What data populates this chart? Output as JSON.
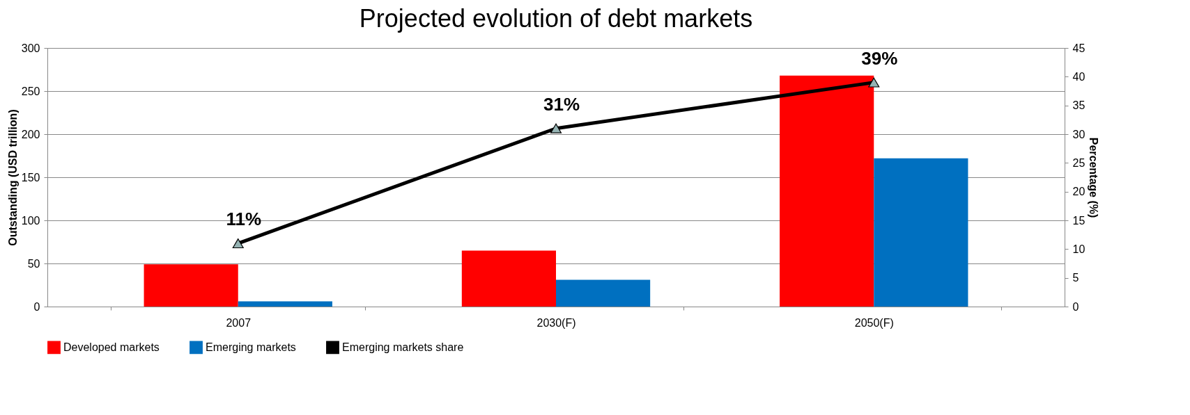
{
  "chart_data": {
    "type": "bar",
    "title": "Projected evolution of debt markets",
    "categories": [
      "2007",
      "2030(F)",
      "2050(F)"
    ],
    "ylabel": "Outstanding (USD trillion)",
    "y2label": "Percentage (%)",
    "ylim": [
      0,
      300
    ],
    "yticks": [
      0,
      50,
      100,
      150,
      200,
      250,
      300
    ],
    "y2lim": [
      0,
      45
    ],
    "y2ticks": [
      0,
      5,
      10,
      15,
      20,
      25,
      30,
      35,
      40,
      45
    ],
    "grid": "y",
    "legend": "bottom",
    "series": [
      {
        "name": "Developed markets",
        "color": "#ff0000",
        "values": [
          49,
          65,
          268
        ]
      },
      {
        "name": "Emerging markets",
        "color": "#0070c0",
        "values": [
          6,
          31,
          172
        ]
      },
      {
        "name": "Emerging markets share",
        "type": "line",
        "axis": "y2",
        "marker": "triangle",
        "color": "#000000",
        "values": [
          11,
          31,
          39
        ],
        "value_labels": [
          "11%",
          "31%",
          "39%"
        ]
      }
    ]
  }
}
